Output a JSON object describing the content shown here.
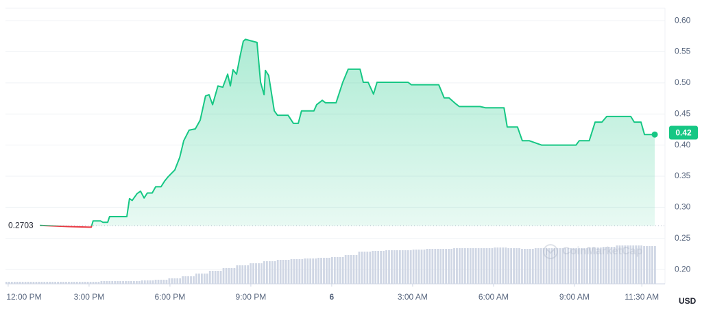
{
  "chart_data": {
    "type": "line",
    "x": [
      1.17,
      2.24,
      3.08,
      3.15,
      3.43,
      3.51,
      3.69,
      3.76,
      4.4,
      4.5,
      4.6,
      4.78,
      4.91,
      5.04,
      5.16,
      5.34,
      5.47,
      5.67,
      5.8,
      5.93,
      6.18,
      6.36,
      6.51,
      6.71,
      6.94,
      7.12,
      7.32,
      7.45,
      7.58,
      7.78,
      7.96,
      8.14,
      8.24,
      8.34,
      8.47,
      8.6,
      8.72,
      8.8,
      9.23,
      9.36,
      9.49,
      9.54,
      9.66,
      9.87,
      9.99,
      10.38,
      10.58,
      10.76,
      10.88,
      11.34,
      11.44,
      11.65,
      11.77,
      12.16,
      12.41,
      12.61,
      13.05,
      13.17,
      13.35,
      13.55,
      13.68,
      14.83,
      14.95,
      15.97,
      16.17,
      16.35,
      16.61,
      16.73,
      17.5,
      17.7,
      18.39,
      18.51,
      18.89,
      19.07,
      19.33,
      19.78,
      21.06,
      21.18,
      21.55,
      21.77,
      22.02,
      22.2,
      22.45,
      23.09,
      23.22,
      23.47,
      23.6,
      23.98
    ],
    "series": [
      {
        "name": "Price",
        "color": "#16c784",
        "below_color": "#ea3943",
        "values": [
          0.271,
          0.269,
          0.268,
          0.278,
          0.278,
          0.276,
          0.276,
          0.285,
          0.285,
          0.314,
          0.311,
          0.322,
          0.326,
          0.315,
          0.323,
          0.323,
          0.333,
          0.333,
          0.342,
          0.349,
          0.36,
          0.38,
          0.407,
          0.424,
          0.426,
          0.44,
          0.479,
          0.481,
          0.465,
          0.495,
          0.493,
          0.514,
          0.495,
          0.521,
          0.514,
          0.543,
          0.567,
          0.57,
          0.565,
          0.501,
          0.481,
          0.52,
          0.512,
          0.455,
          0.448,
          0.448,
          0.435,
          0.435,
          0.455,
          0.455,
          0.465,
          0.472,
          0.468,
          0.468,
          0.501,
          0.522,
          0.522,
          0.501,
          0.501,
          0.482,
          0.501,
          0.501,
          0.497,
          0.497,
          0.476,
          0.476,
          0.466,
          0.462,
          0.462,
          0.46,
          0.46,
          0.429,
          0.429,
          0.407,
          0.407,
          0.4,
          0.4,
          0.407,
          0.407,
          0.437,
          0.437,
          0.446,
          0.446,
          0.446,
          0.437,
          0.437,
          0.417,
          0.417
        ]
      }
    ],
    "volume": {
      "color": "#cfd6e4",
      "axis": "y2",
      "values": [
        3,
        3,
        3,
        3,
        3,
        3,
        3,
        4,
        4,
        4,
        5,
        6,
        8,
        11,
        15,
        19,
        23,
        27,
        30,
        33,
        35,
        36,
        37,
        38,
        39,
        42,
        47,
        48,
        49,
        49,
        50,
        51,
        51,
        52,
        52,
        52,
        53,
        52,
        51,
        52,
        52,
        52,
        52,
        53,
        54,
        56,
        56,
        55
      ]
    },
    "y2lim": [
      0,
      100
    ],
    "baseline": 0.2703,
    "current_price": 0.42,
    "xlim": [
      -0.1,
      24.36
    ],
    "xticks": [
      {
        "value": 0,
        "label": "12:00 PM"
      },
      {
        "value": 3,
        "label": "3:00 PM"
      },
      {
        "value": 6,
        "label": "6:00 PM"
      },
      {
        "value": 9,
        "label": "9:00 PM"
      },
      {
        "value": 12,
        "label": "6"
      },
      {
        "value": 15,
        "label": "3:00 AM"
      },
      {
        "value": 18,
        "label": "6:00 AM"
      },
      {
        "value": 21,
        "label": "9:00 AM"
      },
      {
        "value": 23.5,
        "label": "11:30 AM"
      }
    ],
    "ylim": [
      0.177,
      0.62
    ],
    "yticks": [
      {
        "value": 0.2,
        "label": "0.20"
      },
      {
        "value": 0.25,
        "label": "0.25"
      },
      {
        "value": 0.3,
        "label": "0.30"
      },
      {
        "value": 0.35,
        "label": "0.35"
      },
      {
        "value": 0.4,
        "label": "0.40"
      },
      {
        "value": 0.45,
        "label": "0.45"
      },
      {
        "value": 0.5,
        "label": "0.50"
      },
      {
        "value": 0.55,
        "label": "0.55"
      },
      {
        "value": 0.6,
        "label": "0.60"
      }
    ],
    "grid": true,
    "y_axis_label": "USD",
    "watermark": "CoinMarketCap"
  }
}
